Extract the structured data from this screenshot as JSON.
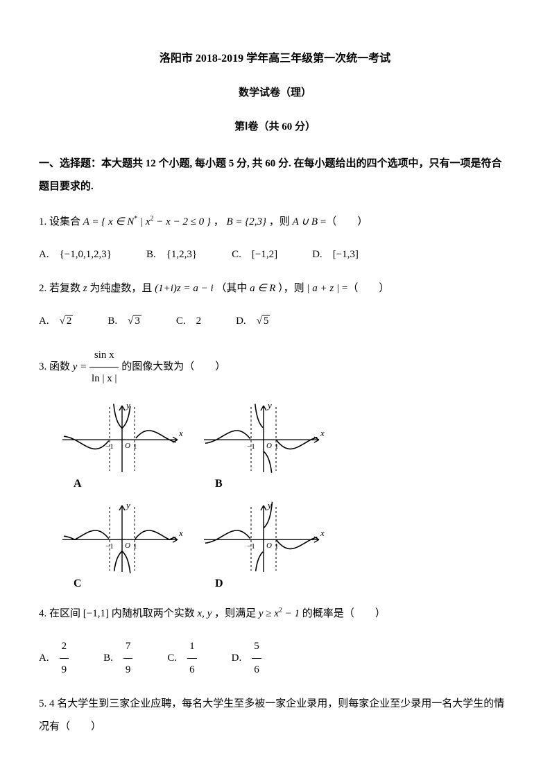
{
  "title": "洛阳市 2018-2019 学年高三年级第一次统一考试",
  "subtitle": "数学试卷（理）",
  "part": "第Ⅰ卷（共 60 分）",
  "section_head": "一、选择题：本大题共 12 个小题, 每小题 5 分, 共 60 分. 在每小题给出的四个选项中，只有一项是符合题目要求的.",
  "q1": {
    "prefix": "1. 设集合 ",
    "setA": "A = { x ∈ N* | x² − x − 2 ≤ 0 } ， B = {2,3} ，则 A ∪ B =（　　）",
    "opts": {
      "A": "{−1,0,1,2,3}",
      "B": "{1,2,3}",
      "C": "[−1,2]",
      "D": "[−1,3]"
    }
  },
  "q2": {
    "text": "2. 若复数 z 为纯虚数，且 (1+i)z = a − i （其中 a ∈ R ），则 | a + z | =（　　）",
    "opts": {
      "A": "√2",
      "B": "√3",
      "C": "2",
      "D": "√5"
    }
  },
  "q3": {
    "prefix": "3. 函数 ",
    "suffix": " 的图像大致为（　　）",
    "num": "sin x",
    "den": "ln | x |",
    "labels": {
      "A": "A",
      "B": "B",
      "C": "C",
      "D": "D"
    },
    "graph": {
      "stroke": "#000000",
      "axis_width": 1.4,
      "curve_width": 1.6,
      "dash": "3,3",
      "tick_labels": {
        "neg1": "−1",
        "pos1": "1",
        "O": "O",
        "x": "x",
        "y": "y"
      },
      "width": 180,
      "height": 110
    }
  },
  "q4": {
    "text": "4. 在区间 [−1,1] 内随机取两个实数 x, y ，则满足 y ≥ x² − 1 的概率是（　　）",
    "opts": {
      "A_num": "2",
      "A_den": "9",
      "B_num": "7",
      "B_den": "9",
      "C_num": "1",
      "C_den": "6",
      "D_num": "5",
      "D_den": "6"
    }
  },
  "q5": {
    "text": "5. 4 名大学生到三家企业应聘，每名大学生至多被一家企业录用，则每家企业至少录用一名大学生的情况有（　　）"
  }
}
